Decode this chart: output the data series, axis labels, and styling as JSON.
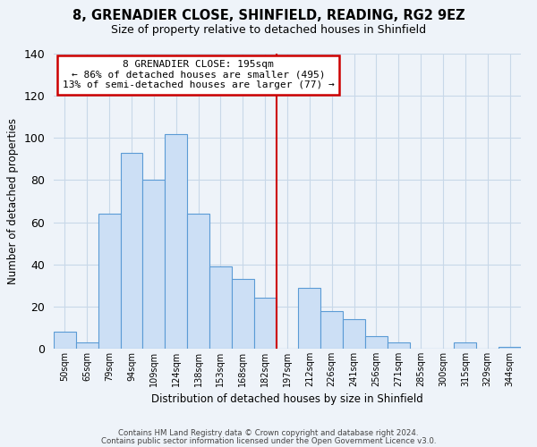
{
  "title": "8, GRENADIER CLOSE, SHINFIELD, READING, RG2 9EZ",
  "subtitle": "Size of property relative to detached houses in Shinfield",
  "xlabel": "Distribution of detached houses by size in Shinfield",
  "ylabel": "Number of detached properties",
  "bar_labels": [
    "50sqm",
    "65sqm",
    "79sqm",
    "94sqm",
    "109sqm",
    "124sqm",
    "138sqm",
    "153sqm",
    "168sqm",
    "182sqm",
    "197sqm",
    "212sqm",
    "226sqm",
    "241sqm",
    "256sqm",
    "271sqm",
    "285sqm",
    "300sqm",
    "315sqm",
    "329sqm",
    "344sqm"
  ],
  "bar_values": [
    8,
    3,
    64,
    93,
    80,
    102,
    64,
    39,
    33,
    24,
    0,
    29,
    18,
    14,
    6,
    3,
    0,
    0,
    3,
    0,
    1
  ],
  "bar_fill_color": "#ccdff5",
  "bar_edge_color": "#5b9bd5",
  "bar_edge_width": 0.8,
  "grid_color": "#c8d8e8",
  "vline_x_index": 10,
  "vline_color": "#cc0000",
  "annotation_title": "8 GRENADIER CLOSE: 195sqm",
  "annotation_line1": "← 86% of detached houses are smaller (495)",
  "annotation_line2": "13% of semi-detached houses are larger (77) →",
  "annotation_box_color": "white",
  "annotation_box_edge": "#cc0000",
  "ylim": [
    0,
    140
  ],
  "yticks": [
    0,
    20,
    40,
    60,
    80,
    100,
    120,
    140
  ],
  "footer1": "Contains HM Land Registry data © Crown copyright and database right 2024.",
  "footer2": "Contains public sector information licensed under the Open Government Licence v3.0.",
  "background_color": "#eef3f9",
  "plot_bg_color": "#eef3f9"
}
